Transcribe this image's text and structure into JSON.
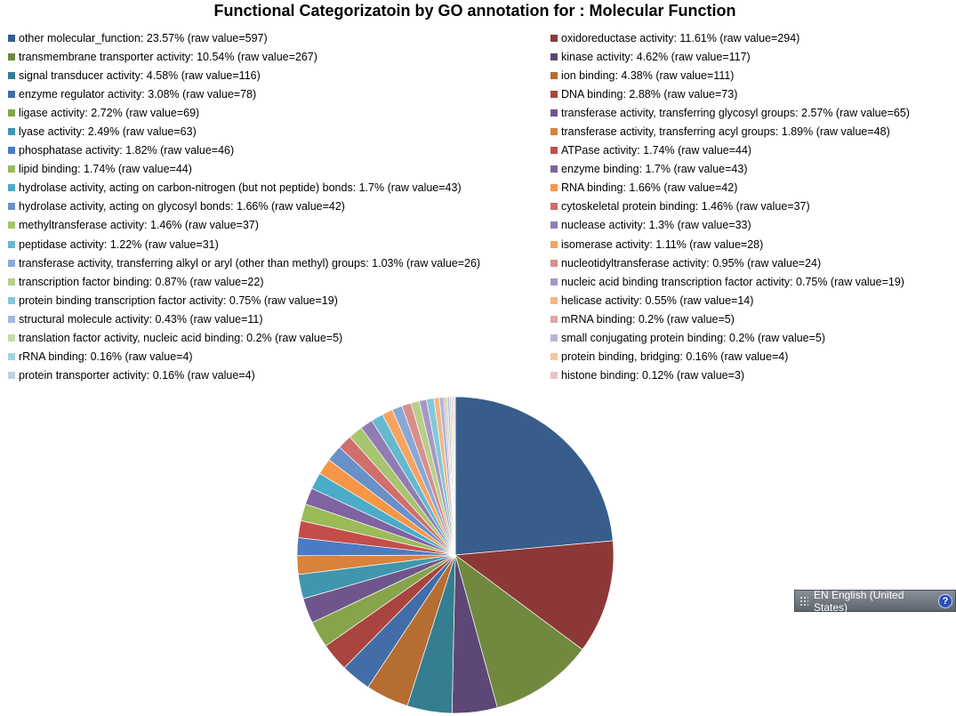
{
  "chart_data": {
    "type": "pie",
    "title": "Functional Categorizatoin by GO annotation  for : Molecular Function",
    "legend_placement": "top",
    "label_template": "{name}: {pct}% (raw value={raw})",
    "slices": [
      {
        "name": "other molecular_function",
        "pct": "23.57",
        "raw": 597,
        "color": "#385d8a"
      },
      {
        "name": "oxidoreductase activity",
        "pct": "11.61",
        "raw": 294,
        "color": "#8c3836"
      },
      {
        "name": "transmembrane transporter activity",
        "pct": "10.54",
        "raw": 267,
        "color": "#71893f"
      },
      {
        "name": "kinase activity",
        "pct": "4.62",
        "raw": 117,
        "color": "#5c4776"
      },
      {
        "name": "signal transducer activity",
        "pct": "4.58",
        "raw": 116,
        "color": "#357d91"
      },
      {
        "name": "ion binding",
        "pct": "4.38",
        "raw": 111,
        "color": "#b66d31"
      },
      {
        "name": "enzyme regulator activity",
        "pct": "3.08",
        "raw": 78,
        "color": "#426da9"
      },
      {
        "name": "DNA binding",
        "pct": "2.88",
        "raw": 73,
        "color": "#a9443f"
      },
      {
        "name": "ligase activity",
        "pct": "2.72",
        "raw": 69,
        "color": "#86a44a"
      },
      {
        "name": "transferase activity, transferring glycosyl groups",
        "pct": "2.57",
        "raw": 65,
        "color": "#6e568c"
      },
      {
        "name": "lyase activity",
        "pct": "2.49",
        "raw": 63,
        "color": "#4096ad"
      },
      {
        "name": "transferase activity, transferring acyl groups",
        "pct": "1.89",
        "raw": 48,
        "color": "#d9823b"
      },
      {
        "name": "phosphatase activity",
        "pct": "1.82",
        "raw": 46,
        "color": "#4b7bc3"
      },
      {
        "name": "ATPase activity",
        "pct": "1.74",
        "raw": 44,
        "color": "#c44d4a"
      },
      {
        "name": "lipid binding",
        "pct": "1.74",
        "raw": 44,
        "color": "#9bbb59"
      },
      {
        "name": "enzyme binding",
        "pct": "1.7",
        "raw": 43,
        "color": "#7f63a2"
      },
      {
        "name": "hydrolase activity, acting on carbon-nitrogen (but not peptide) bonds",
        "pct": "1.7",
        "raw": 43,
        "color": "#4bacc6"
      },
      {
        "name": "RNA binding",
        "pct": "1.66",
        "raw": 42,
        "color": "#f79646"
      },
      {
        "name": "hydrolase activity, acting on glycosyl bonds",
        "pct": "1.66",
        "raw": 42,
        "color": "#6990c9"
      },
      {
        "name": "cytoskeletal protein binding",
        "pct": "1.46",
        "raw": 37,
        "color": "#cf6e6b"
      },
      {
        "name": "methyltransferase activity",
        "pct": "1.46",
        "raw": 37,
        "color": "#a9c46e"
      },
      {
        "name": "nuclease activity",
        "pct": "1.3",
        "raw": 33,
        "color": "#927db3"
      },
      {
        "name": "peptidase activity",
        "pct": "1.22",
        "raw": 31,
        "color": "#64b9cf"
      },
      {
        "name": "isomerase activity",
        "pct": "1.11",
        "raw": 28,
        "color": "#f8a35f"
      },
      {
        "name": "transferase activity, transferring alkyl or aryl (other than methyl) groups",
        "pct": "1.03",
        "raw": 26,
        "color": "#8aa8d6"
      },
      {
        "name": "nucleotidyltransferase activity",
        "pct": "0.95",
        "raw": 24,
        "color": "#d98e8c"
      },
      {
        "name": "transcription factor binding",
        "pct": "0.87",
        "raw": 22,
        "color": "#b8cf8a"
      },
      {
        "name": "nucleic acid binding transcription factor activity",
        "pct": "0.75",
        "raw": 19,
        "color": "#a798c2"
      },
      {
        "name": "protein binding transcription factor activity",
        "pct": "0.75",
        "raw": 19,
        "color": "#84c8d9"
      },
      {
        "name": "helicase activity",
        "pct": "0.55",
        "raw": 14,
        "color": "#f9b47f"
      },
      {
        "name": "structural molecule activity",
        "pct": "0.43",
        "raw": 11,
        "color": "#a5b9de"
      },
      {
        "name": "mRNA binding",
        "pct": "0.2",
        "raw": 5,
        "color": "#e0a7a6"
      },
      {
        "name": "translation factor activity, nucleic acid binding",
        "pct": "0.2",
        "raw": 5,
        "color": "#c6d8a6"
      },
      {
        "name": "small conjugating protein binding",
        "pct": "0.2",
        "raw": 5,
        "color": "#bdb2d2"
      },
      {
        "name": "rRNA binding",
        "pct": "0.16",
        "raw": 4,
        "color": "#a3d4e1"
      },
      {
        "name": "protein binding, bridging",
        "pct": "0.16",
        "raw": 4,
        "color": "#fac49e"
      },
      {
        "name": "protein transporter activity",
        "pct": "0.16",
        "raw": 4,
        "color": "#c2cfe8"
      },
      {
        "name": "histone binding",
        "pct": "0.12",
        "raw": 3,
        "color": "#ebc4c3"
      }
    ]
  },
  "taskbar": {
    "language_label": "EN English (United States)",
    "help_glyph": "?"
  }
}
